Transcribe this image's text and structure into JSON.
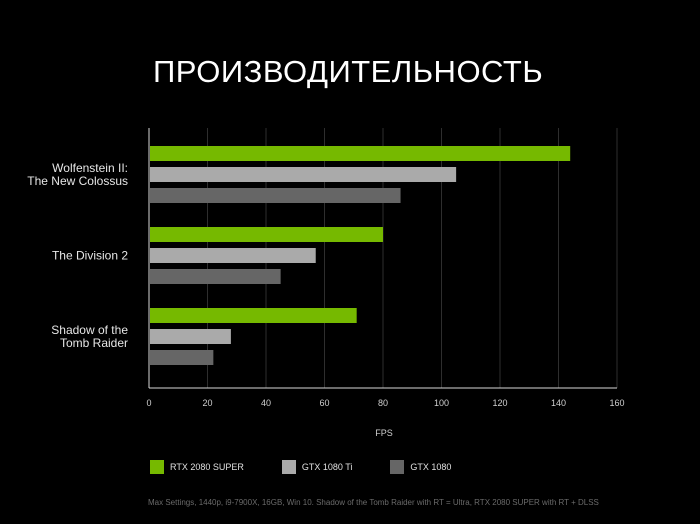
{
  "chart_data": {
    "type": "bar",
    "orientation": "horizontal",
    "title": "ПРОИЗВОДИТЕЛЬНОСТЬ",
    "categories": [
      "Wolfenstein II:\nThe New Colossus",
      "The Division 2",
      "Shadow of the\nTomb Raider"
    ],
    "series": [
      {
        "name": "RTX 2080 SUPER",
        "color": "#76b900",
        "values": [
          144,
          80,
          71
        ]
      },
      {
        "name": "GTX 1080 Ti",
        "color": "#aaaaaa",
        "values": [
          105,
          57,
          28
        ]
      },
      {
        "name": "GTX 1080",
        "color": "#666666",
        "values": [
          86,
          45,
          22
        ]
      }
    ],
    "xlabel": "FPS",
    "xlim": [
      0,
      160
    ],
    "xticks": [
      0,
      20,
      40,
      60,
      80,
      100,
      120,
      140,
      160
    ],
    "grid": true,
    "legend_position": "bottom-left"
  },
  "footnote": "Max Settings, 1440p, i9-7900X, 16GB, Win 10. Shadow of the Tomb Raider with RT = Ultra, RTX 2080 SUPER with RT + DLSS"
}
